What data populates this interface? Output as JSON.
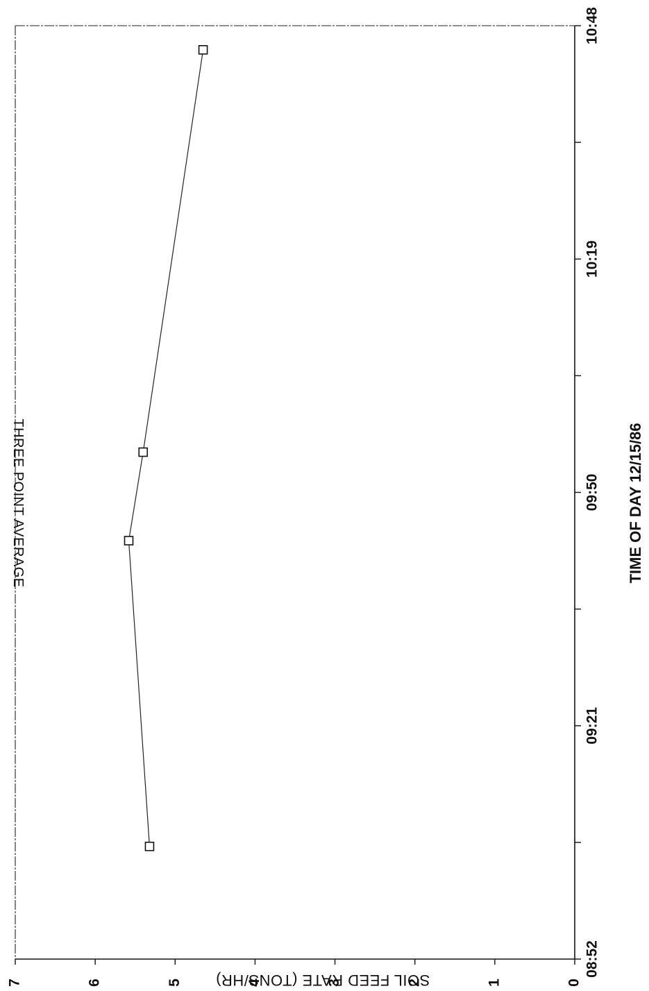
{
  "chart_data": {
    "type": "line",
    "title": "THREE POINT AVERAGE",
    "xlabel": "TIME OF DAY  12/15/86",
    "ylabel": "SOIL FEED RATE (TONS/HR)",
    "x_ticks": [
      "08:52",
      "09:21",
      "09:50",
      "10:19",
      "10:48"
    ],
    "xlim": [
      "08:52",
      "10:48"
    ],
    "ylim": [
      0,
      7
    ],
    "y_ticks": [
      0,
      1,
      2,
      3,
      4,
      5,
      6,
      7
    ],
    "grid": false,
    "series": [
      {
        "x": [
          "09:06",
          "09:44",
          "09:55",
          "10:45"
        ],
        "y": [
          5.32,
          5.58,
          5.4,
          4.65
        ]
      }
    ]
  }
}
